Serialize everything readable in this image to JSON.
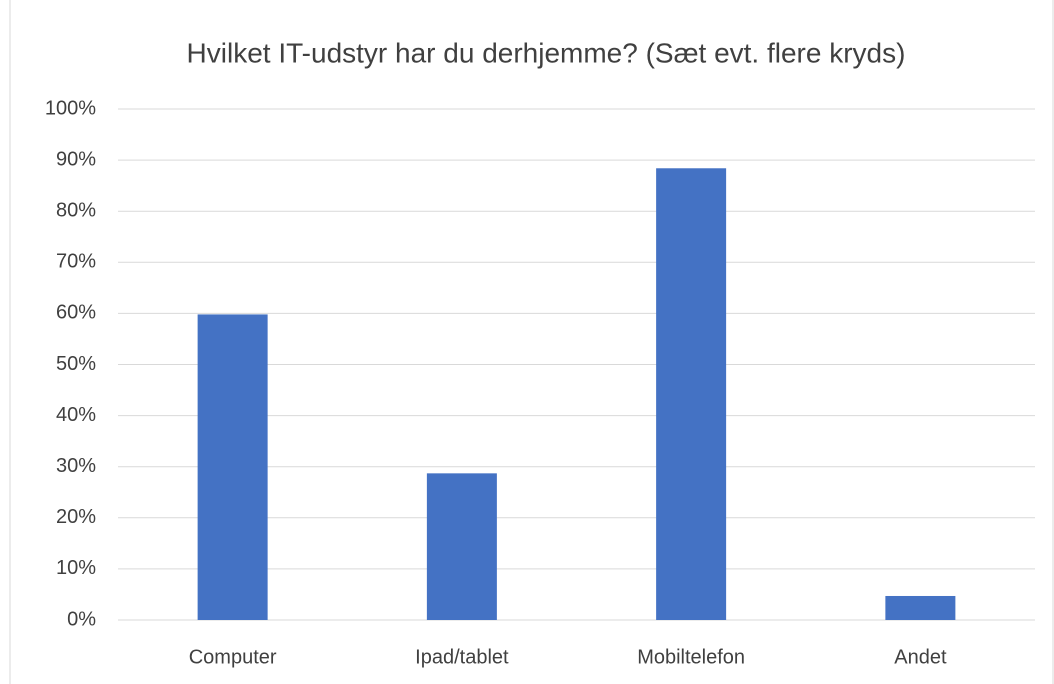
{
  "chart_data": {
    "type": "bar",
    "title": "Hvilket IT-udstyr har du derhjemme? (Sæt evt. flere kryds)",
    "categories": [
      "Computer",
      "Ipad/tablet",
      "Mobiltelefon",
      "Andet"
    ],
    "values": [
      59.8,
      28.7,
      88.4,
      4.7
    ],
    "color": "#4472c4",
    "ylim": [
      0,
      100
    ],
    "yticks": [
      {
        "value": 0,
        "label": "0%"
      },
      {
        "value": 10,
        "label": "10%"
      },
      {
        "value": 20,
        "label": "20%"
      },
      {
        "value": 30,
        "label": "30%"
      },
      {
        "value": 40,
        "label": "40%"
      },
      {
        "value": 50,
        "label": "50%"
      },
      {
        "value": 60,
        "label": "60%"
      },
      {
        "value": 70,
        "label": "70%"
      },
      {
        "value": 80,
        "label": "80%"
      },
      {
        "value": 90,
        "label": "90%"
      },
      {
        "value": 100,
        "label": "100%"
      }
    ],
    "grid": true
  }
}
